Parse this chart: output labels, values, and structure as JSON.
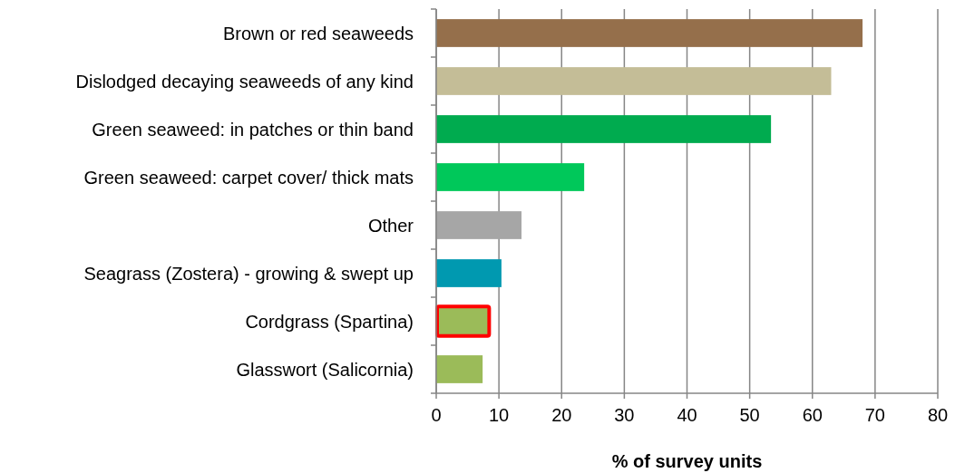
{
  "chart_data": {
    "type": "bar",
    "orientation": "horizontal",
    "xlabel": "% of survey units",
    "categories": [
      "Brown or red seaweeds",
      "Dislodged decaying seaweeds of any kind",
      "Green seaweed: in patches or thin band",
      "Green seaweed: carpet cover/ thick mats",
      "Other",
      "Seagrass (Zostera) - growing & swept up",
      "Cordgrass (Spartina)",
      "Glasswort (Salicornia)"
    ],
    "values": [
      68,
      63,
      53.4,
      23.6,
      13.6,
      10.4,
      8.3,
      7.4
    ],
    "colors": [
      "#956f4b",
      "#c4bd97",
      "#00ab4f",
      "#00c85a",
      "#a6a6a6",
      "#0099b0",
      "#9bbb59",
      "#9bbb59"
    ],
    "xlim": [
      0,
      80
    ],
    "xticks": [
      0,
      10,
      20,
      30,
      40,
      50,
      60,
      70,
      80
    ],
    "grid": "x"
  }
}
